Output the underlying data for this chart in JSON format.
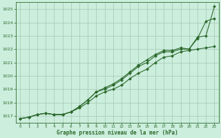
{
  "title": "Graphe pression niveau de la mer (hPa)",
  "bg_color": "#cceedd",
  "grid_color": "#aaccbb",
  "line_color": "#2d6a2d",
  "marker_color": "#2d6a2d",
  "xlim": [
    -0.5,
    23.5
  ],
  "ylim": [
    1016.5,
    1025.5
  ],
  "yticks": [
    1017,
    1018,
    1019,
    1020,
    1021,
    1022,
    1023,
    1024,
    1025
  ],
  "xticks": [
    0,
    1,
    2,
    3,
    4,
    5,
    6,
    7,
    8,
    9,
    10,
    11,
    12,
    13,
    14,
    15,
    16,
    17,
    18,
    19,
    20,
    21,
    22,
    23
  ],
  "series": [
    [
      1016.8,
      1016.9,
      1017.1,
      1017.2,
      1017.1,
      1017.1,
      1017.3,
      1017.6,
      1018.0,
      1018.5,
      1018.8,
      1019.0,
      1019.3,
      1019.8,
      1020.2,
      1020.5,
      1021.0,
      1021.4,
      1021.5,
      1021.8,
      1021.9,
      1022.0,
      1022.1,
      1022.2
    ],
    [
      1016.8,
      1016.9,
      1017.1,
      1017.2,
      1017.1,
      1017.1,
      1017.3,
      1017.7,
      1018.2,
      1018.8,
      1019.1,
      1019.4,
      1019.8,
      1020.3,
      1020.8,
      1021.2,
      1021.6,
      1021.9,
      1021.9,
      1022.1,
      1022.0,
      1022.8,
      1024.1,
      1024.3
    ],
    [
      1016.8,
      1016.9,
      1017.1,
      1017.2,
      1017.1,
      1017.1,
      1017.3,
      1017.7,
      1018.2,
      1018.8,
      1019.0,
      1019.3,
      1019.7,
      1020.2,
      1020.7,
      1021.0,
      1021.5,
      1021.8,
      1021.8,
      1022.0,
      1022.0,
      1022.9,
      1023.0,
      1025.2
    ]
  ]
}
